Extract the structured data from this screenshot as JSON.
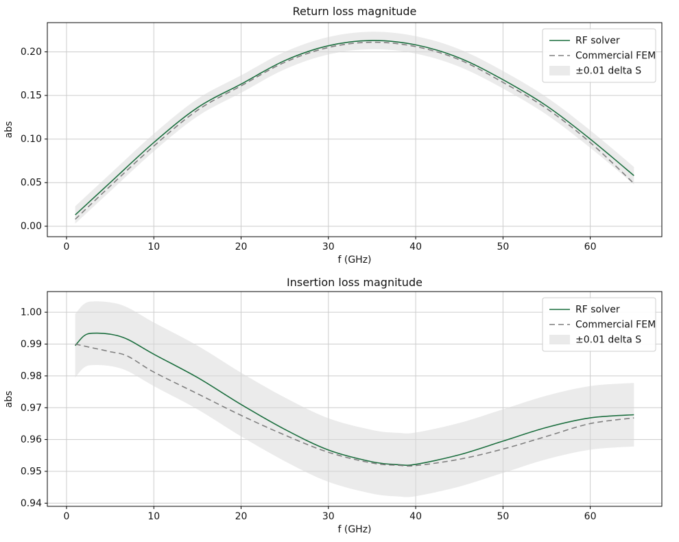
{
  "figure": {
    "background": "#ffffff"
  },
  "chart_data": [
    {
      "type": "line",
      "title": "Return loss magnitude",
      "xlabel": "f (GHz)",
      "ylabel": "abs",
      "xlim": [
        -2.2,
        68.2
      ],
      "ylim": [
        -0.012,
        0.2335
      ],
      "grid": true,
      "legend_position": "upper right",
      "xticks": [
        0,
        10,
        20,
        30,
        40,
        50,
        60
      ],
      "xtick_labels": [
        "0",
        "10",
        "20",
        "30",
        "40",
        "50",
        "60"
      ],
      "yticks": [
        0.0,
        0.05,
        0.1,
        0.15,
        0.2
      ],
      "ytick_labels": [
        "0.00",
        "0.05",
        "0.10",
        "0.15",
        "0.20"
      ],
      "x": [
        1,
        5,
        10,
        15,
        20,
        25,
        30,
        35,
        40,
        45,
        50,
        55,
        60,
        65
      ],
      "series": [
        {
          "name": "RF solver",
          "color": "#1b6e3e",
          "style": "solid",
          "values": [
            0.013,
            0.05,
            0.096,
            0.136,
            0.163,
            0.19,
            0.207,
            0.213,
            0.208,
            0.193,
            0.168,
            0.138,
            0.1,
            0.058
          ]
        },
        {
          "name": "Commercial FEM",
          "color": "#7f7f7f",
          "style": "dashed",
          "values": [
            0.008,
            0.046,
            0.092,
            0.133,
            0.161,
            0.188,
            0.205,
            0.211,
            0.206,
            0.191,
            0.165,
            0.135,
            0.096,
            0.049
          ]
        }
      ],
      "band": {
        "name": "±0.01 delta S",
        "color": "#d8d8d8",
        "opacity": 0.5,
        "center": "RF solver",
        "delta": 0.01,
        "upper": [
          0.023,
          0.06,
          0.106,
          0.146,
          0.173,
          0.2,
          0.217,
          0.223,
          0.218,
          0.203,
          0.178,
          0.148,
          0.11,
          0.068
        ],
        "lower": [
          0.003,
          0.04,
          0.086,
          0.126,
          0.153,
          0.18,
          0.197,
          0.203,
          0.198,
          0.183,
          0.158,
          0.128,
          0.09,
          0.048
        ]
      }
    },
    {
      "type": "line",
      "title": "Insertion loss magnitude",
      "xlabel": "f (GHz)",
      "ylabel": "abs",
      "xlim": [
        -2.2,
        68.2
      ],
      "ylim": [
        0.939,
        1.0065
      ],
      "grid": true,
      "legend_position": "upper right",
      "xticks": [
        0,
        10,
        20,
        30,
        40,
        50,
        60
      ],
      "xtick_labels": [
        "0",
        "10",
        "20",
        "30",
        "40",
        "50",
        "60"
      ],
      "yticks": [
        0.94,
        0.95,
        0.96,
        0.97,
        0.98,
        0.99,
        1.0
      ],
      "ytick_labels": [
        "0.94",
        "0.95",
        "0.96",
        "0.97",
        "0.98",
        "0.99",
        "1.00"
      ],
      "x": [
        1,
        2,
        3,
        5,
        7,
        10,
        15,
        20,
        25,
        30,
        35,
        38,
        40,
        45,
        50,
        55,
        60,
        65
      ],
      "series": [
        {
          "name": "RF solver",
          "color": "#1b6e3e",
          "style": "solid",
          "values": [
            0.9895,
            0.9926,
            0.9934,
            0.9931,
            0.9915,
            0.9868,
            0.9795,
            0.971,
            0.9632,
            0.9567,
            0.953,
            0.9521,
            0.9522,
            0.9552,
            0.9595,
            0.9638,
            0.9668,
            0.9678
          ]
        },
        {
          "name": "Commercial FEM",
          "color": "#7f7f7f",
          "style": "dashed",
          "values": [
            0.99,
            0.9894,
            0.9888,
            0.9876,
            0.9862,
            0.9812,
            0.9744,
            0.9676,
            0.9614,
            0.956,
            0.9526,
            0.9519,
            0.9518,
            0.9538,
            0.957,
            0.961,
            0.965,
            0.9668
          ]
        }
      ],
      "band": {
        "name": "±0.01 delta S",
        "color": "#d8d8d8",
        "opacity": 0.5,
        "center": "RF solver",
        "delta": 0.01,
        "upper": [
          0.9995,
          1.0026,
          1.0034,
          1.0031,
          1.0015,
          0.9968,
          0.9895,
          0.981,
          0.9732,
          0.9667,
          0.963,
          0.9621,
          0.9622,
          0.9652,
          0.9695,
          0.9738,
          0.9768,
          0.9778
        ],
        "lower": [
          0.9795,
          0.9826,
          0.9834,
          0.9831,
          0.9815,
          0.9768,
          0.9695,
          0.961,
          0.9532,
          0.9467,
          0.943,
          0.9421,
          0.9422,
          0.9452,
          0.9495,
          0.9538,
          0.9568,
          0.9578
        ]
      }
    }
  ]
}
